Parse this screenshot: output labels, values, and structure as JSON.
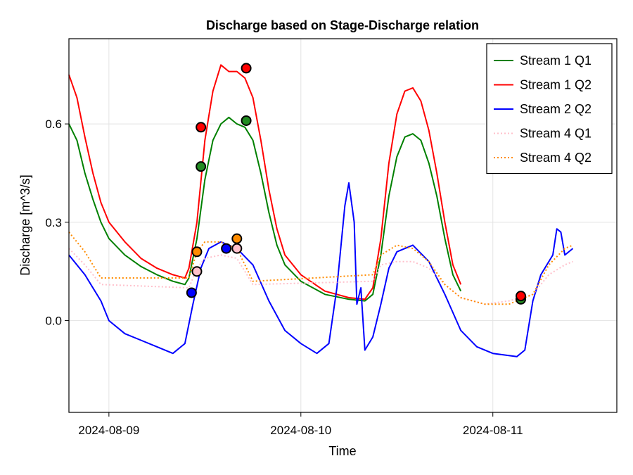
{
  "chart_data": {
    "type": "line",
    "title": "Discharge based on Stage-Discharge relation",
    "xlabel": "Time",
    "ylabel": "Discharge [m^3/s]",
    "x_axis": {
      "type": "date",
      "range": [
        "2024-08-08 19:00",
        "2024-08-11 15:30"
      ],
      "ticks": [
        "2024-08-09",
        "2024-08-10",
        "2024-08-11"
      ]
    },
    "y_axis": {
      "range": [
        -0.28,
        0.86
      ],
      "ticks": [
        0.0,
        0.3,
        0.6
      ]
    },
    "grid": true,
    "legend": {
      "position": "top-right"
    },
    "series": [
      {
        "name": "Stream 1 Q1",
        "color": "#008000",
        "style": "solid",
        "points": [
          [
            "2024-08-08 19:00",
            0.6
          ],
          [
            "2024-08-08 20:00",
            0.55
          ],
          [
            "2024-08-08 21:00",
            0.45
          ],
          [
            "2024-08-08 22:00",
            0.37
          ],
          [
            "2024-08-08 23:00",
            0.3
          ],
          [
            "2024-08-09 00:00",
            0.25
          ],
          [
            "2024-08-09 02:00",
            0.2
          ],
          [
            "2024-08-09 04:00",
            0.165
          ],
          [
            "2024-08-09 06:00",
            0.14
          ],
          [
            "2024-08-09 08:00",
            0.12
          ],
          [
            "2024-08-09 09:30",
            0.11
          ],
          [
            "2024-08-09 10:00",
            0.13
          ],
          [
            "2024-08-09 11:00",
            0.25
          ],
          [
            "2024-08-09 12:00",
            0.43
          ],
          [
            "2024-08-09 13:00",
            0.55
          ],
          [
            "2024-08-09 14:00",
            0.6
          ],
          [
            "2024-08-09 15:00",
            0.62
          ],
          [
            "2024-08-09 16:00",
            0.6
          ],
          [
            "2024-08-09 17:00",
            0.59
          ],
          [
            "2024-08-09 18:00",
            0.55
          ],
          [
            "2024-08-09 19:00",
            0.45
          ],
          [
            "2024-08-09 20:00",
            0.33
          ],
          [
            "2024-08-09 21:00",
            0.23
          ],
          [
            "2024-08-09 22:00",
            0.17
          ],
          [
            "2024-08-10 00:00",
            0.12
          ],
          [
            "2024-08-10 03:00",
            0.08
          ],
          [
            "2024-08-10 06:00",
            0.065
          ],
          [
            "2024-08-10 08:00",
            0.06
          ],
          [
            "2024-08-10 09:00",
            0.08
          ],
          [
            "2024-08-10 10:00",
            0.2
          ],
          [
            "2024-08-10 11:00",
            0.38
          ],
          [
            "2024-08-10 12:00",
            0.5
          ],
          [
            "2024-08-10 13:00",
            0.56
          ],
          [
            "2024-08-10 14:00",
            0.57
          ],
          [
            "2024-08-10 15:00",
            0.55
          ],
          [
            "2024-08-10 16:00",
            0.48
          ],
          [
            "2024-08-10 17:00",
            0.38
          ],
          [
            "2024-08-10 18:00",
            0.25
          ],
          [
            "2024-08-10 19:00",
            0.14
          ],
          [
            "2024-08-10 20:00",
            0.09
          ]
        ]
      },
      {
        "name": "Stream 1 Q2",
        "color": "#ff0000",
        "style": "solid",
        "points": [
          [
            "2024-08-08 19:00",
            0.75
          ],
          [
            "2024-08-08 20:00",
            0.68
          ],
          [
            "2024-08-08 21:00",
            0.56
          ],
          [
            "2024-08-08 22:00",
            0.45
          ],
          [
            "2024-08-08 23:00",
            0.36
          ],
          [
            "2024-08-09 00:00",
            0.3
          ],
          [
            "2024-08-09 02:00",
            0.24
          ],
          [
            "2024-08-09 04:00",
            0.19
          ],
          [
            "2024-08-09 06:00",
            0.16
          ],
          [
            "2024-08-09 08:00",
            0.14
          ],
          [
            "2024-08-09 09:30",
            0.13
          ],
          [
            "2024-08-09 10:00",
            0.16
          ],
          [
            "2024-08-09 11:00",
            0.3
          ],
          [
            "2024-08-09 12:00",
            0.55
          ],
          [
            "2024-08-09 13:00",
            0.7
          ],
          [
            "2024-08-09 14:00",
            0.78
          ],
          [
            "2024-08-09 15:00",
            0.76
          ],
          [
            "2024-08-09 16:00",
            0.76
          ],
          [
            "2024-08-09 17:00",
            0.74
          ],
          [
            "2024-08-09 18:00",
            0.68
          ],
          [
            "2024-08-09 19:00",
            0.55
          ],
          [
            "2024-08-09 20:00",
            0.4
          ],
          [
            "2024-08-09 21:00",
            0.28
          ],
          [
            "2024-08-09 22:00",
            0.2
          ],
          [
            "2024-08-10 00:00",
            0.14
          ],
          [
            "2024-08-10 03:00",
            0.09
          ],
          [
            "2024-08-10 06:00",
            0.07
          ],
          [
            "2024-08-10 08:00",
            0.065
          ],
          [
            "2024-08-10 09:00",
            0.1
          ],
          [
            "2024-08-10 10:00",
            0.25
          ],
          [
            "2024-08-10 11:00",
            0.48
          ],
          [
            "2024-08-10 12:00",
            0.63
          ],
          [
            "2024-08-10 13:00",
            0.7
          ],
          [
            "2024-08-10 14:00",
            0.71
          ],
          [
            "2024-08-10 15:00",
            0.67
          ],
          [
            "2024-08-10 16:00",
            0.58
          ],
          [
            "2024-08-10 17:00",
            0.45
          ],
          [
            "2024-08-10 18:00",
            0.3
          ],
          [
            "2024-08-10 19:00",
            0.17
          ],
          [
            "2024-08-10 20:00",
            0.11
          ]
        ]
      },
      {
        "name": "Stream 2 Q2",
        "color": "#0000ff",
        "style": "solid",
        "points": [
          [
            "2024-08-08 19:00",
            0.2
          ],
          [
            "2024-08-08 21:00",
            0.14
          ],
          [
            "2024-08-08 23:00",
            0.06
          ],
          [
            "2024-08-09 00:00",
            0.0
          ],
          [
            "2024-08-09 02:00",
            -0.04
          ],
          [
            "2024-08-09 04:00",
            -0.06
          ],
          [
            "2024-08-09 06:00",
            -0.08
          ],
          [
            "2024-08-09 08:00",
            -0.1
          ],
          [
            "2024-08-09 09:30",
            -0.07
          ],
          [
            "2024-08-09 10:30",
            0.05
          ],
          [
            "2024-08-09 11:30",
            0.16
          ],
          [
            "2024-08-09 12:30",
            0.22
          ],
          [
            "2024-08-09 14:00",
            0.24
          ],
          [
            "2024-08-09 16:00",
            0.22
          ],
          [
            "2024-08-09 18:00",
            0.17
          ],
          [
            "2024-08-09 20:00",
            0.06
          ],
          [
            "2024-08-09 22:00",
            -0.03
          ],
          [
            "2024-08-10 00:00",
            -0.07
          ],
          [
            "2024-08-10 02:00",
            -0.1
          ],
          [
            "2024-08-10 03:30",
            -0.07
          ],
          [
            "2024-08-10 04:30",
            0.1
          ],
          [
            "2024-08-10 05:30",
            0.35
          ],
          [
            "2024-08-10 06:00",
            0.42
          ],
          [
            "2024-08-10 06:40",
            0.3
          ],
          [
            "2024-08-10 07:00",
            0.05
          ],
          [
            "2024-08-10 07:30",
            0.1
          ],
          [
            "2024-08-10 08:00",
            -0.09
          ],
          [
            "2024-08-10 09:00",
            -0.05
          ],
          [
            "2024-08-10 10:00",
            0.05
          ],
          [
            "2024-08-10 11:00",
            0.16
          ],
          [
            "2024-08-10 12:00",
            0.21
          ],
          [
            "2024-08-10 14:00",
            0.23
          ],
          [
            "2024-08-10 16:00",
            0.18
          ],
          [
            "2024-08-10 18:00",
            0.08
          ],
          [
            "2024-08-10 20:00",
            -0.03
          ],
          [
            "2024-08-10 22:00",
            -0.08
          ],
          [
            "2024-08-11 00:00",
            -0.1
          ],
          [
            "2024-08-11 03:00",
            -0.11
          ],
          [
            "2024-08-11 04:00",
            -0.09
          ],
          [
            "2024-08-11 05:00",
            0.06
          ],
          [
            "2024-08-11 06:00",
            0.14
          ],
          [
            "2024-08-11 07:30",
            0.2
          ],
          [
            "2024-08-11 08:00",
            0.28
          ],
          [
            "2024-08-11 08:30",
            0.27
          ],
          [
            "2024-08-11 09:00",
            0.2
          ],
          [
            "2024-08-11 10:00",
            0.22
          ]
        ]
      },
      {
        "name": "Stream 4 Q1",
        "color": "#ffc0cb",
        "style": "dotted",
        "points": [
          [
            "2024-08-08 19:00",
            0.22
          ],
          [
            "2024-08-08 21:00",
            0.17
          ],
          [
            "2024-08-08 23:00",
            0.11
          ],
          [
            "2024-08-09 10:00",
            0.1
          ],
          [
            "2024-08-09 11:00",
            0.16
          ],
          [
            "2024-08-09 12:00",
            0.19
          ],
          [
            "2024-08-09 14:00",
            0.2
          ],
          [
            "2024-08-09 16:00",
            0.19
          ],
          [
            "2024-08-09 18:00",
            0.11
          ],
          [
            "2024-08-10 09:00",
            0.12
          ],
          [
            "2024-08-10 10:00",
            0.17
          ],
          [
            "2024-08-10 12:00",
            0.18
          ],
          [
            "2024-08-10 14:00",
            0.18
          ],
          [
            "2024-08-10 16:00",
            0.16
          ],
          [
            "2024-08-10 18:00",
            0.11
          ],
          [
            "2024-08-10 20:00",
            0.07
          ],
          [
            "2024-08-10 23:00",
            0.05
          ],
          [
            "2024-08-11 02:00",
            0.06
          ],
          [
            "2024-08-11 05:00",
            0.08
          ],
          [
            "2024-08-11 07:00",
            0.14
          ],
          [
            "2024-08-11 09:00",
            0.17
          ],
          [
            "2024-08-11 10:00",
            0.18
          ]
        ]
      },
      {
        "name": "Stream 4 Q2",
        "color": "#ff8c00",
        "style": "dotted",
        "points": [
          [
            "2024-08-08 19:00",
            0.27
          ],
          [
            "2024-08-08 21:00",
            0.21
          ],
          [
            "2024-08-08 23:00",
            0.13
          ],
          [
            "2024-08-09 10:00",
            0.13
          ],
          [
            "2024-08-09 11:00",
            0.21
          ],
          [
            "2024-08-09 12:00",
            0.24
          ],
          [
            "2024-08-09 14:00",
            0.24
          ],
          [
            "2024-08-09 16:00",
            0.22
          ],
          [
            "2024-08-09 18:00",
            0.12
          ],
          [
            "2024-08-10 09:00",
            0.14
          ],
          [
            "2024-08-10 10:00",
            0.2
          ],
          [
            "2024-08-10 12:00",
            0.23
          ],
          [
            "2024-08-10 14:00",
            0.22
          ],
          [
            "2024-08-10 16:00",
            0.18
          ],
          [
            "2024-08-10 18:00",
            0.11
          ],
          [
            "2024-08-10 20:00",
            0.07
          ],
          [
            "2024-08-10 23:00",
            0.05
          ],
          [
            "2024-08-11 02:00",
            0.05
          ],
          [
            "2024-08-11 05:00",
            0.08
          ],
          [
            "2024-08-11 07:00",
            0.17
          ],
          [
            "2024-08-11 09:00",
            0.22
          ],
          [
            "2024-08-11 10:00",
            0.23
          ]
        ]
      }
    ],
    "markers": [
      {
        "series": "Stream 1 Q1",
        "color": "#228b22",
        "x": "2024-08-09 11:30",
        "y": 0.47
      },
      {
        "series": "Stream 1 Q1",
        "color": "#228b22",
        "x": "2024-08-09 17:10",
        "y": 0.61
      },
      {
        "series": "Stream 1 Q1",
        "color": "#228b22",
        "x": "2024-08-11 03:30",
        "y": 0.065
      },
      {
        "series": "Stream 1 Q2",
        "color": "#ff0000",
        "x": "2024-08-09 11:30",
        "y": 0.59
      },
      {
        "series": "Stream 1 Q2",
        "color": "#ff0000",
        "x": "2024-08-09 17:10",
        "y": 0.77
      },
      {
        "series": "Stream 1 Q2",
        "color": "#ff0000",
        "x": "2024-08-11 03:30",
        "y": 0.075
      },
      {
        "series": "Stream 2 Q2",
        "color": "#0000ff",
        "x": "2024-08-09 10:20",
        "y": 0.085
      },
      {
        "series": "Stream 2 Q2",
        "color": "#0000ff",
        "x": "2024-08-09 14:40",
        "y": 0.22
      },
      {
        "series": "Stream 4 Q1",
        "color": "#ffc0cb",
        "x": "2024-08-09 11:00",
        "y": 0.15
      },
      {
        "series": "Stream 4 Q1",
        "color": "#ffc0cb",
        "x": "2024-08-09 16:00",
        "y": 0.22
      },
      {
        "series": "Stream 4 Q2",
        "color": "#ff8c00",
        "x": "2024-08-09 11:00",
        "y": 0.21
      },
      {
        "series": "Stream 4 Q2",
        "color": "#ff8c00",
        "x": "2024-08-09 16:00",
        "y": 0.25
      }
    ]
  }
}
